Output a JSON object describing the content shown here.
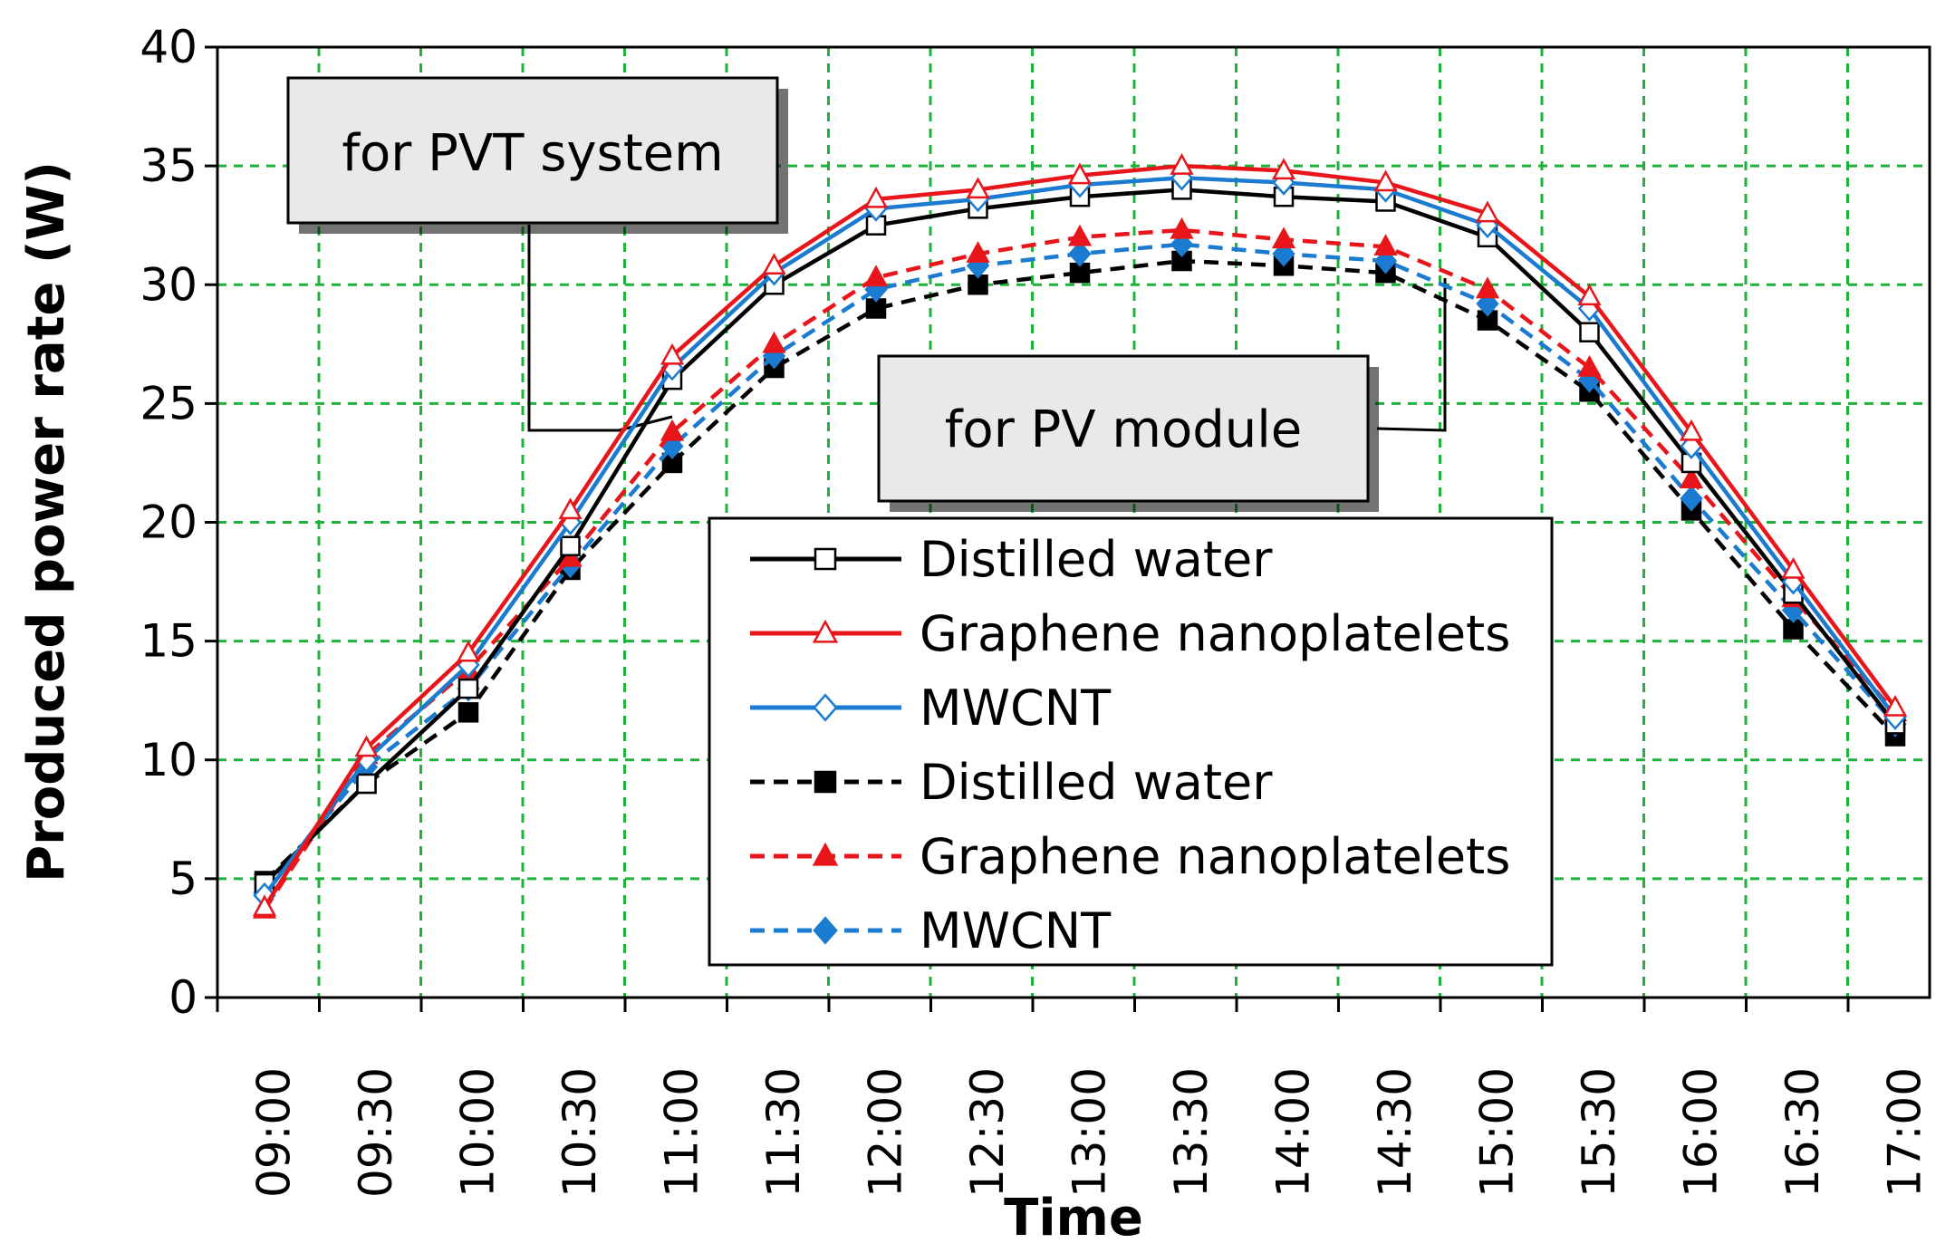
{
  "chart_data": {
    "type": "line",
    "title": "",
    "xlabel": "Time",
    "ylabel": "Produced power rate (W)",
    "ylim": [
      0,
      40
    ],
    "yticks": [
      0,
      5,
      10,
      15,
      20,
      25,
      30,
      35,
      40
    ],
    "xtick_labels": [
      "09:00",
      "09:30",
      "10:00",
      "10:30",
      "11:00",
      "11:30",
      "12:00",
      "12:30",
      "13:00",
      "13:30",
      "14:00",
      "14:30",
      "15:00",
      "15:30",
      "16:00",
      "16:30",
      "17:00"
    ],
    "x_points": [
      "08:45",
      "09:15",
      "09:45",
      "10:15",
      "10:45",
      "11:15",
      "11:45",
      "12:15",
      "12:45",
      "13:15",
      "13:45",
      "14:15",
      "14:45",
      "15:15",
      "15:45",
      "16:15",
      "16:45"
    ],
    "grid": true,
    "series": [
      {
        "name": "Distilled water",
        "group": "PVT",
        "color": "#000000",
        "dash": "solid",
        "marker": "square-open",
        "values": [
          4.8,
          9.0,
          13.0,
          19.0,
          26.0,
          30.0,
          32.5,
          33.2,
          33.7,
          34.0,
          33.7,
          33.5,
          32.0,
          28.0,
          22.5,
          17.0,
          11.5
        ]
      },
      {
        "name": "Graphene nanoplatelets",
        "group": "PVT",
        "color": "#e8161b",
        "dash": "solid",
        "marker": "triangle-open",
        "values": [
          3.8,
          10.5,
          14.5,
          20.5,
          27.0,
          30.8,
          33.6,
          34.0,
          34.6,
          35.0,
          34.8,
          34.3,
          33.0,
          29.5,
          23.8,
          18.0,
          12.2
        ]
      },
      {
        "name": "MWCNT",
        "group": "PVT",
        "color": "#1a7bd0",
        "dash": "solid",
        "marker": "diamond-open",
        "values": [
          4.3,
          10.0,
          14.0,
          20.0,
          26.5,
          30.5,
          33.2,
          33.6,
          34.2,
          34.5,
          34.3,
          34.0,
          32.5,
          29.0,
          23.2,
          17.5,
          11.8
        ]
      },
      {
        "name": "Distilled water",
        "group": "PV",
        "color": "#000000",
        "dash": "dashed",
        "marker": "square-filled",
        "values": [
          4.9,
          9.0,
          12.0,
          18.0,
          22.5,
          26.5,
          29.0,
          30.0,
          30.5,
          31.0,
          30.8,
          30.5,
          28.5,
          25.5,
          20.5,
          15.5,
          11.0
        ]
      },
      {
        "name": "Graphene nanoplatelets",
        "group": "PV",
        "color": "#e8161b",
        "dash": "dashed",
        "marker": "triangle-filled",
        "values": [
          3.7,
          10.2,
          13.8,
          18.5,
          23.8,
          27.5,
          30.3,
          31.3,
          32.0,
          32.3,
          31.9,
          31.6,
          29.8,
          26.5,
          21.8,
          16.8,
          12.0
        ]
      },
      {
        "name": "MWCNT",
        "group": "PV",
        "color": "#1a7bd0",
        "dash": "dashed",
        "marker": "diamond-filled",
        "values": [
          4.4,
          9.7,
          13.0,
          18.2,
          23.2,
          27.0,
          29.8,
          30.8,
          31.3,
          31.7,
          31.3,
          31.0,
          29.2,
          26.0,
          21.0,
          16.3,
          11.5
        ]
      }
    ],
    "annotations": [
      {
        "text": "for PVT system"
      },
      {
        "text": "for PV module"
      }
    ]
  }
}
